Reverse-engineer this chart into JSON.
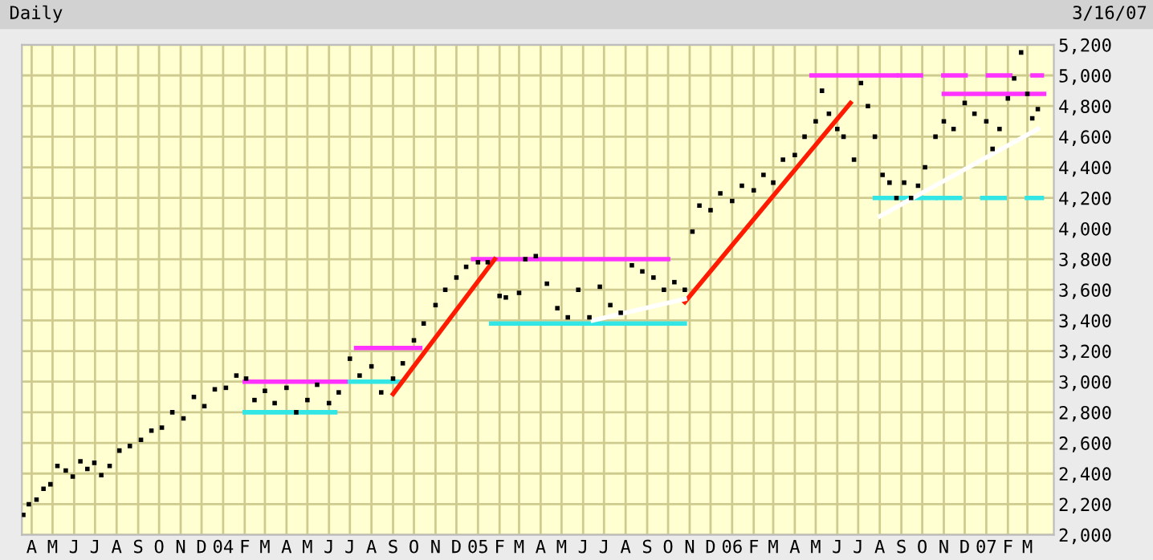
{
  "chart_data": {
    "type": "scatter",
    "title": "Daily",
    "annotations": [
      "3/16/07"
    ],
    "xlim": [
      "2003-03-18",
      "2007-04-08"
    ],
    "ylim": [
      2000,
      5200
    ],
    "yticks": [
      {
        "value": 2000,
        "label": "2,000"
      },
      {
        "value": 2200,
        "label": "2,200"
      },
      {
        "value": 2400,
        "label": "2,400"
      },
      {
        "value": 2600,
        "label": "2,600"
      },
      {
        "value": 2800,
        "label": "2,800"
      },
      {
        "value": 3000,
        "label": "3,000"
      },
      {
        "value": 3200,
        "label": "3,200"
      },
      {
        "value": 3400,
        "label": "3,400"
      },
      {
        "value": 3600,
        "label": "3,600"
      },
      {
        "value": 3800,
        "label": "3,800"
      },
      {
        "value": 4000,
        "label": "4,000"
      },
      {
        "value": 4200,
        "label": "4,200"
      },
      {
        "value": 4400,
        "label": "4,400"
      },
      {
        "value": 4600,
        "label": "4,600"
      },
      {
        "value": 4800,
        "label": "4,800"
      },
      {
        "value": 5000,
        "label": "5,000"
      },
      {
        "value": 5200,
        "label": "5,200"
      }
    ],
    "xticks": [
      {
        "value": "2003-04-01",
        "label": "A"
      },
      {
        "value": "2003-05-01",
        "label": "M"
      },
      {
        "value": "2003-06-01",
        "label": "J"
      },
      {
        "value": "2003-07-01",
        "label": "J"
      },
      {
        "value": "2003-08-01",
        "label": "A"
      },
      {
        "value": "2003-09-01",
        "label": "S"
      },
      {
        "value": "2003-10-01",
        "label": "O"
      },
      {
        "value": "2003-11-01",
        "label": "N"
      },
      {
        "value": "2003-12-01",
        "label": "D"
      },
      {
        "value": "2004-01-01",
        "label": "04"
      },
      {
        "value": "2004-02-01",
        "label": "F"
      },
      {
        "value": "2004-03-01",
        "label": "M"
      },
      {
        "value": "2004-04-01",
        "label": "A"
      },
      {
        "value": "2004-05-01",
        "label": "M"
      },
      {
        "value": "2004-06-01",
        "label": "J"
      },
      {
        "value": "2004-07-01",
        "label": "J"
      },
      {
        "value": "2004-08-01",
        "label": "A"
      },
      {
        "value": "2004-09-01",
        "label": "S"
      },
      {
        "value": "2004-10-01",
        "label": "O"
      },
      {
        "value": "2004-11-01",
        "label": "N"
      },
      {
        "value": "2004-12-01",
        "label": "D"
      },
      {
        "value": "2005-01-01",
        "label": "05"
      },
      {
        "value": "2005-02-01",
        "label": "F"
      },
      {
        "value": "2005-03-01",
        "label": "M"
      },
      {
        "value": "2005-04-01",
        "label": "A"
      },
      {
        "value": "2005-05-01",
        "label": "M"
      },
      {
        "value": "2005-06-01",
        "label": "J"
      },
      {
        "value": "2005-07-01",
        "label": "J"
      },
      {
        "value": "2005-08-01",
        "label": "A"
      },
      {
        "value": "2005-09-01",
        "label": "S"
      },
      {
        "value": "2005-10-01",
        "label": "O"
      },
      {
        "value": "2005-11-01",
        "label": "N"
      },
      {
        "value": "2005-12-01",
        "label": "D"
      },
      {
        "value": "2006-01-01",
        "label": "06"
      },
      {
        "value": "2006-02-01",
        "label": "F"
      },
      {
        "value": "2006-03-01",
        "label": "M"
      },
      {
        "value": "2006-04-01",
        "label": "A"
      },
      {
        "value": "2006-05-01",
        "label": "M"
      },
      {
        "value": "2006-06-01",
        "label": "J"
      },
      {
        "value": "2006-07-01",
        "label": "J"
      },
      {
        "value": "2006-08-01",
        "label": "A"
      },
      {
        "value": "2006-09-01",
        "label": "S"
      },
      {
        "value": "2006-10-01",
        "label": "O"
      },
      {
        "value": "2006-11-01",
        "label": "N"
      },
      {
        "value": "2006-12-01",
        "label": "D"
      },
      {
        "value": "2007-01-01",
        "label": "07"
      },
      {
        "value": "2007-02-01",
        "label": "F"
      },
      {
        "value": "2007-03-01",
        "label": "M"
      }
    ],
    "grid": true,
    "legend": false,
    "series": [
      {
        "color": "#000000",
        "marker": "square",
        "x": [
          "2003-03-20",
          "2003-03-28",
          "2003-04-08",
          "2003-04-18",
          "2003-04-28",
          "2003-05-08",
          "2003-05-20",
          "2003-05-30",
          "2003-06-10",
          "2003-06-20",
          "2003-06-30",
          "2003-07-10",
          "2003-07-22",
          "2003-08-05",
          "2003-08-20",
          "2003-09-05",
          "2003-09-20",
          "2003-10-05",
          "2003-10-20",
          "2003-11-05",
          "2003-11-20",
          "2003-12-05",
          "2003-12-20",
          "2004-01-05",
          "2004-01-20",
          "2004-02-03",
          "2004-02-15",
          "2004-03-01",
          "2004-03-15",
          "2004-04-01",
          "2004-04-15",
          "2004-05-01",
          "2004-05-15",
          "2004-06-01",
          "2004-06-15",
          "2004-07-01",
          "2004-07-15",
          "2004-08-01",
          "2004-08-15",
          "2004-09-01",
          "2004-09-15",
          "2004-10-01",
          "2004-10-15",
          "2004-11-01",
          "2004-11-15",
          "2004-12-01",
          "2004-12-15",
          "2005-01-01",
          "2005-01-15",
          "2005-02-01",
          "2005-02-10",
          "2005-03-01",
          "2005-03-10",
          "2005-03-25",
          "2005-04-10",
          "2005-04-25",
          "2005-05-10",
          "2005-05-25",
          "2005-06-10",
          "2005-06-25",
          "2005-07-10",
          "2005-07-25",
          "2005-08-10",
          "2005-08-25",
          "2005-09-10",
          "2005-09-25",
          "2005-10-10",
          "2005-10-25",
          "2005-11-05",
          "2005-11-15",
          "2005-12-01",
          "2005-12-15",
          "2006-01-01",
          "2006-01-15",
          "2006-02-01",
          "2006-02-15",
          "2006-03-01",
          "2006-03-15",
          "2006-04-01",
          "2006-04-15",
          "2006-05-01",
          "2006-05-10",
          "2006-05-20",
          "2006-06-01",
          "2006-06-10",
          "2006-06-25",
          "2006-07-05",
          "2006-07-15",
          "2006-07-25",
          "2006-08-05",
          "2006-08-15",
          "2006-08-25",
          "2006-09-05",
          "2006-09-15",
          "2006-09-25",
          "2006-10-05",
          "2006-10-20",
          "2006-11-01",
          "2006-11-15",
          "2006-12-01",
          "2006-12-15",
          "2007-01-01",
          "2007-01-10",
          "2007-01-20",
          "2007-02-01",
          "2007-02-10",
          "2007-02-20",
          "2007-03-01",
          "2007-03-08",
          "2007-03-16"
        ],
        "values": [
          2130,
          2200,
          2230,
          2300,
          2330,
          2450,
          2420,
          2380,
          2480,
          2430,
          2470,
          2390,
          2450,
          2550,
          2580,
          2620,
          2680,
          2700,
          2800,
          2760,
          2900,
          2840,
          2950,
          2960,
          3040,
          3020,
          2880,
          2940,
          2860,
          2960,
          2800,
          2880,
          2980,
          2860,
          2930,
          3150,
          3040,
          3100,
          2930,
          3020,
          3120,
          3270,
          3380,
          3500,
          3600,
          3680,
          3750,
          3780,
          3780,
          3560,
          3550,
          3580,
          3800,
          3820,
          3640,
          3480,
          3420,
          3600,
          3420,
          3620,
          3500,
          3450,
          3760,
          3720,
          3680,
          3600,
          3650,
          3600,
          3980,
          4150,
          4120,
          4230,
          4180,
          4280,
          4250,
          4350,
          4300,
          4450,
          4480,
          4600,
          4700,
          4900,
          4750,
          4650,
          4600,
          4450,
          4950,
          4800,
          4600,
          4350,
          4300,
          4200,
          4300,
          4200,
          4280,
          4400,
          4600,
          4700,
          4650,
          4820,
          4750,
          4700,
          4520,
          4650,
          4850,
          4980,
          5150,
          4880,
          4720,
          4780
        ]
      },
      {
        "type": "line",
        "color": "#ff33ff",
        "x": [
          "2004-02-01",
          "2004-06-25"
        ],
        "values": [
          3000,
          3000
        ]
      },
      {
        "type": "line",
        "color": "#ff33ff",
        "x": [
          "2004-07-10",
          "2004-10-10"
        ],
        "values": [
          3220,
          3220
        ]
      },
      {
        "type": "line",
        "color": "#ff33ff",
        "x": [
          "2004-12-25",
          "2005-10-01"
        ],
        "values": [
          3800,
          3800
        ]
      },
      {
        "type": "line",
        "color": "#ff33ff",
        "x": [
          "2006-04-25",
          "2006-08-25"
        ],
        "values": [
          5000,
          5000
        ]
      },
      {
        "type": "line",
        "color": "#ff33ff",
        "line_style": "dashed",
        "x": [
          "2006-08-25",
          "2007-03-25"
        ],
        "values": [
          5000,
          5000
        ]
      },
      {
        "type": "line",
        "color": "#ff33ff",
        "x": [
          "2006-11-01",
          "2007-03-25"
        ],
        "values": [
          4880,
          4880
        ]
      },
      {
        "type": "line",
        "color": "#33e6e6",
        "x": [
          "2004-02-01",
          "2004-06-10"
        ],
        "values": [
          2800,
          2800
        ]
      },
      {
        "type": "line",
        "color": "#33e6e6",
        "x": [
          "2004-07-01",
          "2004-09-10"
        ],
        "values": [
          3000,
          3000
        ]
      },
      {
        "type": "line",
        "color": "#33e6e6",
        "x": [
          "2005-01-20",
          "2005-10-25"
        ],
        "values": [
          3380,
          3380
        ]
      },
      {
        "type": "line",
        "color": "#33e6e6",
        "x": [
          "2006-07-25",
          "2006-10-20"
        ],
        "values": [
          4200,
          4200
        ]
      },
      {
        "type": "line",
        "color": "#33e6e6",
        "line_style": "dashed",
        "x": [
          "2006-10-20",
          "2007-03-25"
        ],
        "values": [
          4200,
          4200
        ]
      },
      {
        "type": "line",
        "color": "#ff1a00",
        "x": [
          "2004-09-01",
          "2005-01-25"
        ],
        "values": [
          2920,
          3800
        ]
      },
      {
        "type": "line",
        "color": "#ff1a00",
        "x": [
          "2005-10-25",
          "2006-06-20"
        ],
        "values": [
          3520,
          4820
        ]
      },
      {
        "type": "line",
        "color": "#ffffff",
        "x": [
          "2006-08-01",
          "2007-03-16"
        ],
        "values": [
          4080,
          4650
        ]
      },
      {
        "type": "line",
        "color": "#ffffff",
        "x": [
          "2005-06-15",
          "2005-10-25"
        ],
        "values": [
          3400,
          3540
        ]
      }
    ]
  }
}
